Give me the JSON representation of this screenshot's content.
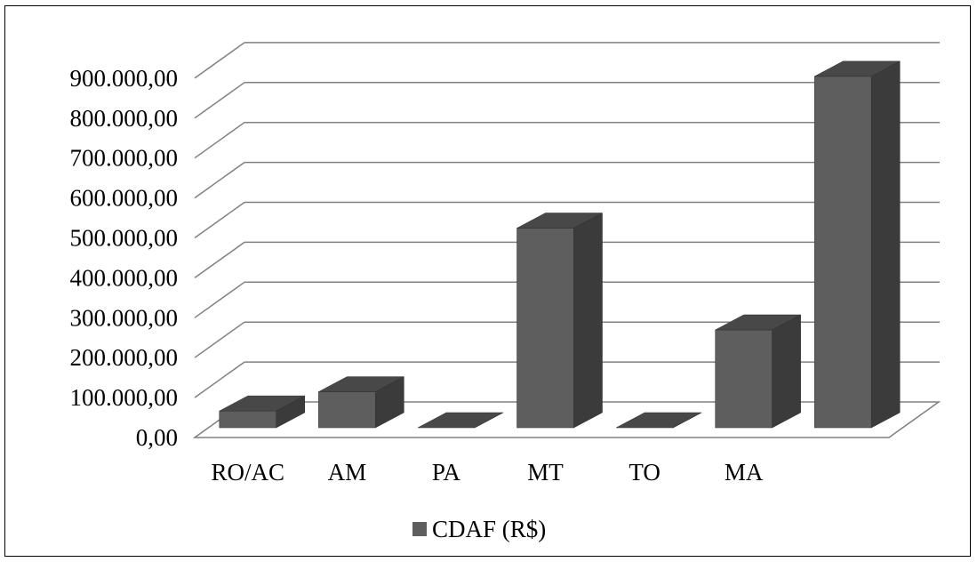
{
  "chart_data": {
    "type": "bar",
    "categories": [
      "RO/AC",
      "AM",
      "PA",
      "MT",
      "TO",
      "MA",
      ""
    ],
    "series": [
      {
        "name": "CDAF (R$)",
        "values": [
          42000,
          90000,
          0,
          500000,
          0,
          245000,
          880000
        ]
      }
    ],
    "title": "",
    "xlabel": "",
    "ylabel": "",
    "ylim": [
      0,
      900000
    ],
    "yticks": [
      "0,00",
      "100.000,00",
      "200.000,00",
      "300.000,00",
      "400.000,00",
      "500.000,00",
      "600.000,00",
      "700.000,00",
      "800.000,00",
      "900.000,00"
    ],
    "style": "3d-column",
    "grid": true,
    "legend_position": "bottom",
    "colors": {
      "front": "#5e5e5e",
      "top": "#484848",
      "side": "#3b3b3b",
      "grid": "#808080"
    }
  }
}
